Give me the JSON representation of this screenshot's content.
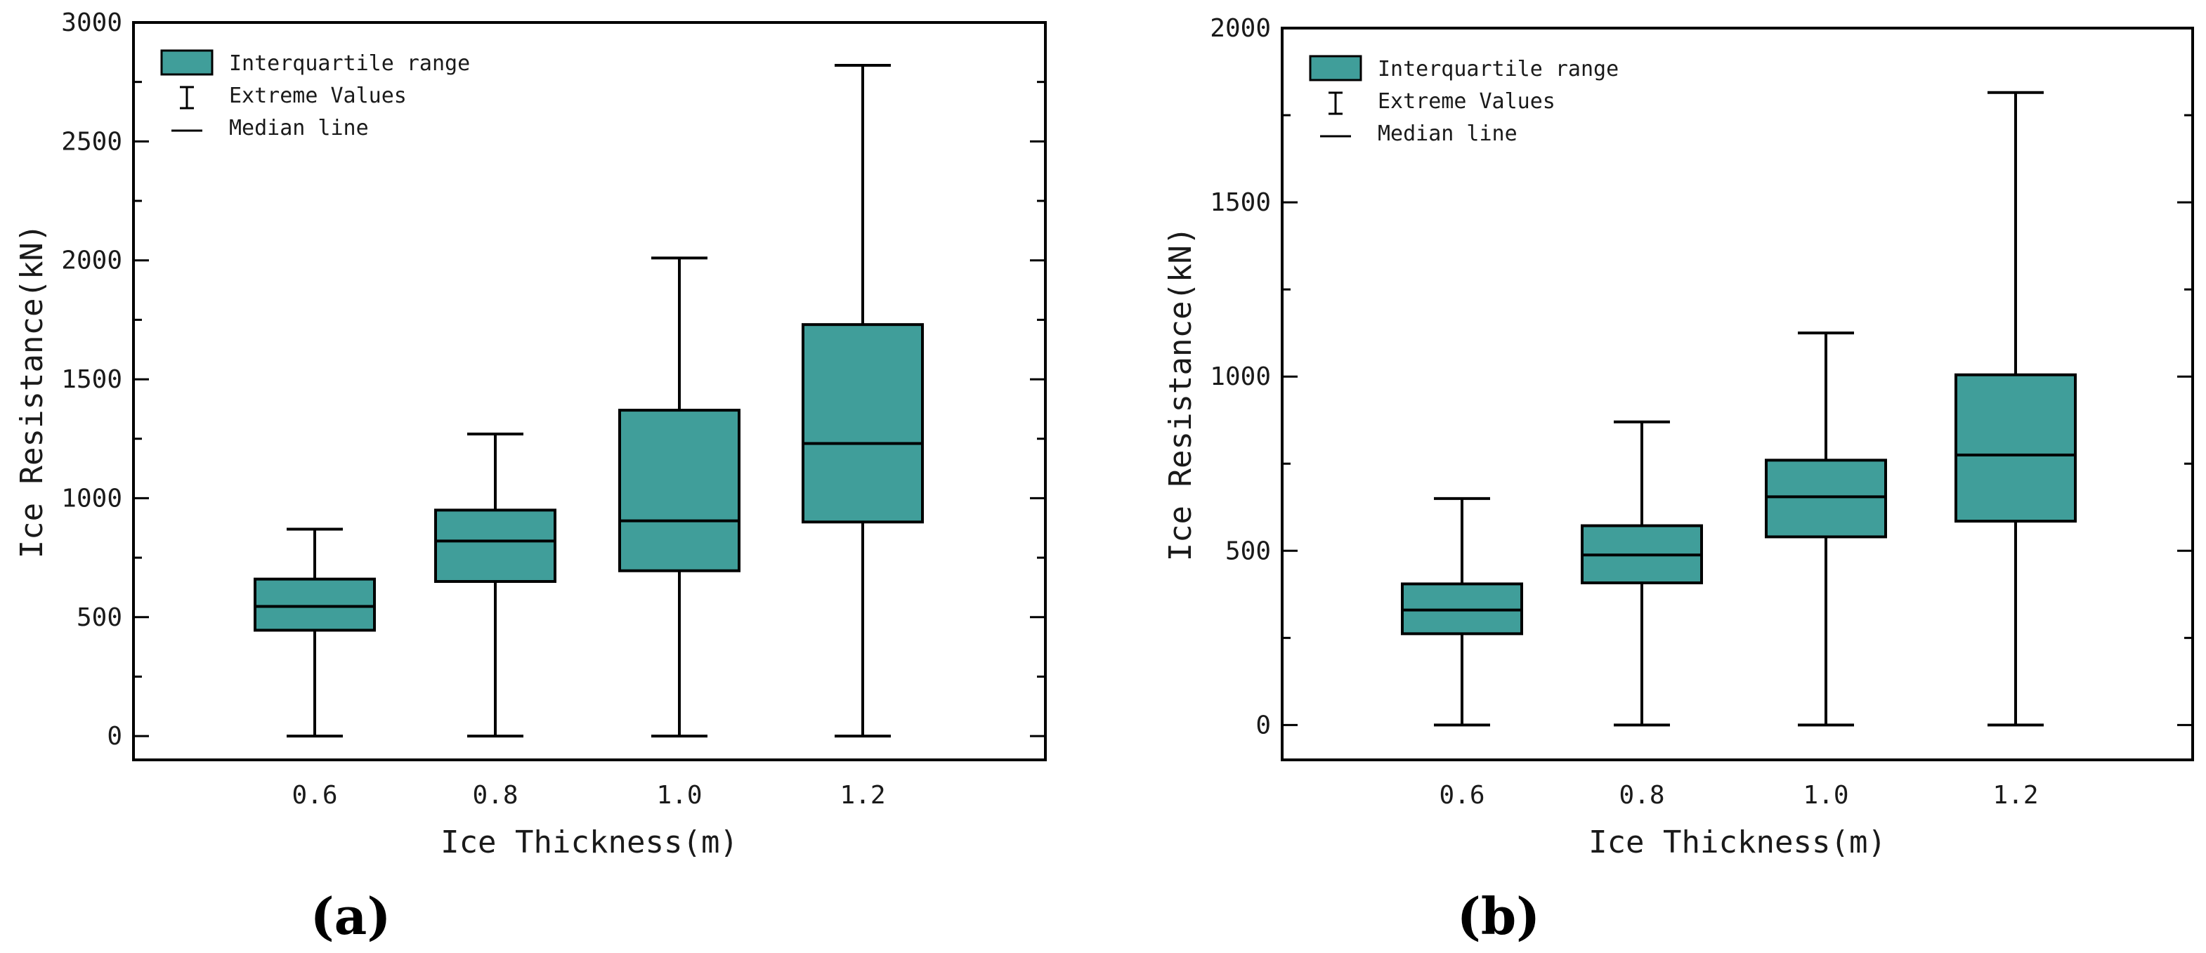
{
  "figure": {
    "colors": {
      "box_fill": "#409e9a",
      "stroke": "#000000"
    },
    "legend": {
      "box_label": "Interquartile range",
      "whisker_label": "Extreme Values",
      "median_label": "Median line"
    }
  },
  "chart_data": [
    {
      "type": "box",
      "panel_label": "(a)",
      "xlabel": "Ice Thickness(m)",
      "ylabel": "Ice Resistance(kN)",
      "ylim": [
        -100,
        3000
      ],
      "yticks": [
        0,
        500,
        1000,
        1500,
        2000,
        2500,
        3000
      ],
      "categories": [
        "0.6",
        "0.8",
        "1.0",
        "1.2"
      ],
      "boxes": [
        {
          "category": "0.6",
          "min": 0,
          "q1": 445,
          "median": 545,
          "q3": 660,
          "max": 870
        },
        {
          "category": "0.8",
          "min": 0,
          "q1": 650,
          "median": 820,
          "q3": 950,
          "max": 1270
        },
        {
          "category": "1.0",
          "min": 0,
          "q1": 695,
          "median": 905,
          "q3": 1370,
          "max": 2010
        },
        {
          "category": "1.2",
          "min": 0,
          "q1": 900,
          "median": 1230,
          "q3": 1730,
          "max": 2820
        }
      ],
      "legend_position": "top-left"
    },
    {
      "type": "box",
      "panel_label": "(b)",
      "xlabel": "Ice Thickness(m)",
      "ylabel": "Ice Resistance(kN)",
      "ylim": [
        -100,
        2000
      ],
      "yticks": [
        0,
        500,
        1000,
        1500,
        2000
      ],
      "categories": [
        "0.6",
        "0.8",
        "1.0",
        "1.2"
      ],
      "boxes": [
        {
          "category": "0.6",
          "min": 0,
          "q1": 262,
          "median": 330,
          "q3": 405,
          "max": 650
        },
        {
          "category": "0.8",
          "min": 0,
          "q1": 408,
          "median": 488,
          "q3": 572,
          "max": 870
        },
        {
          "category": "1.0",
          "min": 0,
          "q1": 540,
          "median": 655,
          "q3": 760,
          "max": 1125
        },
        {
          "category": "1.2",
          "min": 0,
          "q1": 585,
          "median": 775,
          "q3": 1005,
          "max": 1815
        }
      ],
      "legend_position": "top-left"
    }
  ]
}
